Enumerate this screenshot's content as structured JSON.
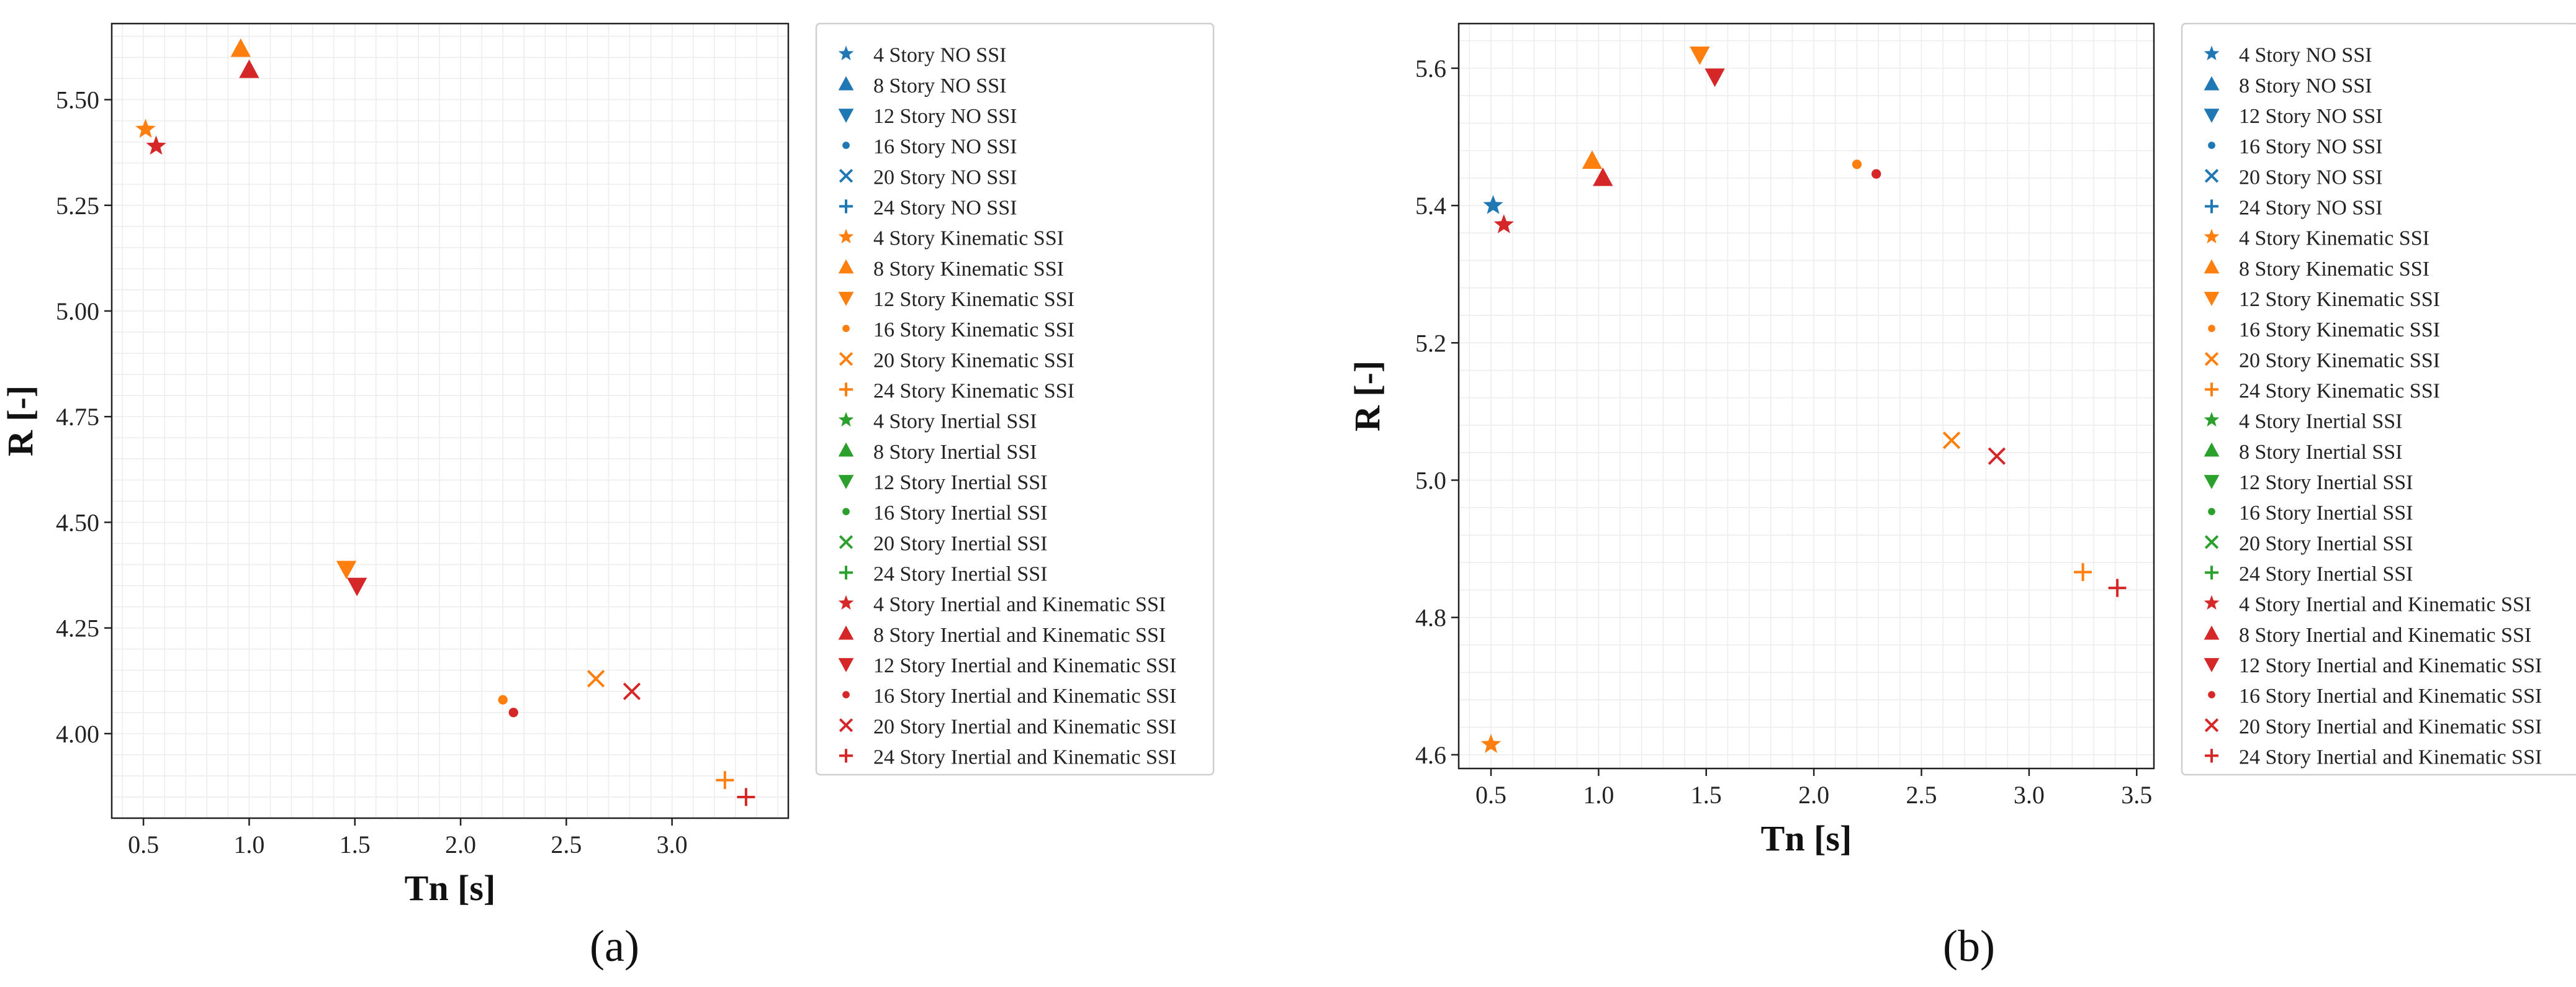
{
  "figure": {
    "panel_labels": [
      "(a)",
      "(b)"
    ]
  },
  "legend_entries": [
    {
      "label": "4 Story NO SSI",
      "marker": "star",
      "color": "#1f77b4"
    },
    {
      "label": "8 Story NO SSI",
      "marker": "triangle-up",
      "color": "#1f77b4"
    },
    {
      "label": "12 Story NO SSI",
      "marker": "triangle-down",
      "color": "#1f77b4"
    },
    {
      "label": "16 Story NO SSI",
      "marker": "dot",
      "color": "#1f77b4"
    },
    {
      "label": "20 Story NO SSI",
      "marker": "x",
      "color": "#1f77b4"
    },
    {
      "label": "24 Story NO SSI",
      "marker": "plus",
      "color": "#1f77b4"
    },
    {
      "label": "4 Story Kinematic SSI",
      "marker": "star",
      "color": "#ff7f0e"
    },
    {
      "label": "8 Story Kinematic SSI",
      "marker": "triangle-up",
      "color": "#ff7f0e"
    },
    {
      "label": "12 Story Kinematic SSI",
      "marker": "triangle-down",
      "color": "#ff7f0e"
    },
    {
      "label": "16 Story Kinematic SSI",
      "marker": "dot",
      "color": "#ff7f0e"
    },
    {
      "label": "20 Story Kinematic SSI",
      "marker": "x",
      "color": "#ff7f0e"
    },
    {
      "label": "24 Story Kinematic SSI",
      "marker": "plus",
      "color": "#ff7f0e"
    },
    {
      "label": "4 Story Inertial SSI",
      "marker": "star",
      "color": "#2ca02c"
    },
    {
      "label": "8 Story Inertial SSI",
      "marker": "triangle-up",
      "color": "#2ca02c"
    },
    {
      "label": "12 Story Inertial SSI",
      "marker": "triangle-down",
      "color": "#2ca02c"
    },
    {
      "label": "16 Story Inertial SSI",
      "marker": "dot",
      "color": "#2ca02c"
    },
    {
      "label": "20 Story Inertial SSI",
      "marker": "x",
      "color": "#2ca02c"
    },
    {
      "label": "24 Story Inertial SSI",
      "marker": "plus",
      "color": "#2ca02c"
    },
    {
      "label": "4 Story Inertial and Kinematic SSI",
      "marker": "star",
      "color": "#d62728"
    },
    {
      "label": "8 Story Inertial and Kinematic SSI",
      "marker": "triangle-up",
      "color": "#d62728"
    },
    {
      "label": "12 Story Inertial and Kinematic SSI",
      "marker": "triangle-down",
      "color": "#d62728"
    },
    {
      "label": "16 Story Inertial and Kinematic SSI",
      "marker": "dot",
      "color": "#d62728"
    },
    {
      "label": "20 Story Inertial and Kinematic SSI",
      "marker": "x",
      "color": "#d62728"
    },
    {
      "label": "24 Story Inertial and Kinematic SSI",
      "marker": "plus",
      "color": "#d62728"
    }
  ],
  "chart_data": [
    {
      "type": "scatter",
      "panel": "(a)",
      "xlabel": "Tn [s]",
      "ylabel": "R [-]",
      "xlim": [
        0.35,
        3.55
      ],
      "ylim": [
        3.8,
        5.68
      ],
      "xticks": [
        0.5,
        1.0,
        1.5,
        2.0,
        2.5,
        3.0
      ],
      "xtick_labels": [
        "0.5",
        "1.0",
        "1.5",
        "2.0",
        "2.5",
        "3.0"
      ],
      "yticks": [
        4.0,
        4.25,
        4.5,
        4.75,
        5.0,
        5.25,
        5.5
      ],
      "ytick_labels": [
        "4.00",
        "4.25",
        "4.50",
        "4.75",
        "5.00",
        "5.25",
        "5.50"
      ],
      "grid": true,
      "legend": "right-outside",
      "series": [
        {
          "name": "4 Story Kinematic SSI",
          "marker": "star",
          "color": "#ff7f0e",
          "x": 0.51,
          "y": 5.43
        },
        {
          "name": "8 Story Kinematic SSI",
          "marker": "triangle-up",
          "color": "#ff7f0e",
          "x": 0.96,
          "y": 5.62
        },
        {
          "name": "12 Story Kinematic SSI",
          "marker": "triangle-down",
          "color": "#ff7f0e",
          "x": 1.46,
          "y": 4.39
        },
        {
          "name": "16 Story Kinematic SSI",
          "marker": "dot",
          "color": "#ff7f0e",
          "x": 2.2,
          "y": 4.08
        },
        {
          "name": "20 Story Kinematic SSI",
          "marker": "x",
          "color": "#ff7f0e",
          "x": 2.64,
          "y": 4.13
        },
        {
          "name": "24 Story Kinematic SSI",
          "marker": "plus",
          "color": "#ff7f0e",
          "x": 3.25,
          "y": 3.89
        },
        {
          "name": "4 Story Inertial and Kinematic SSI",
          "marker": "star",
          "color": "#d62728",
          "x": 0.56,
          "y": 5.39
        },
        {
          "name": "8 Story Inertial and Kinematic SSI",
          "marker": "triangle-up",
          "color": "#d62728",
          "x": 1.0,
          "y": 5.57
        },
        {
          "name": "12 Story Inertial and Kinematic SSI",
          "marker": "triangle-down",
          "color": "#d62728",
          "x": 1.51,
          "y": 4.35
        },
        {
          "name": "16 Story Inertial and Kinematic SSI",
          "marker": "dot",
          "color": "#d62728",
          "x": 2.25,
          "y": 4.05
        },
        {
          "name": "20 Story Inertial and Kinematic SSI",
          "marker": "x",
          "color": "#d62728",
          "x": 2.81,
          "y": 4.1
        },
        {
          "name": "24 Story Inertial and Kinematic SSI",
          "marker": "plus",
          "color": "#d62728",
          "x": 3.35,
          "y": 3.85
        }
      ]
    },
    {
      "type": "scatter",
      "panel": "(b)",
      "xlabel": "Tn [s]",
      "ylabel": "R [-]",
      "xlim": [
        0.35,
        3.58
      ],
      "ylim": [
        4.58,
        5.665
      ],
      "xticks": [
        0.5,
        1.0,
        1.5,
        2.0,
        2.5,
        3.0,
        3.5
      ],
      "xtick_labels": [
        "0.5",
        "1.0",
        "1.5",
        "2.0",
        "2.5",
        "3.0",
        "3.5"
      ],
      "yticks": [
        4.6,
        4.8,
        5.0,
        5.2,
        5.4,
        5.6
      ],
      "ytick_labels": [
        "4.6",
        "4.8",
        "5.0",
        "5.2",
        "5.4",
        "5.6"
      ],
      "grid": true,
      "legend": "right-outside",
      "series": [
        {
          "name": "4 Story NO SSI",
          "marker": "star",
          "color": "#1f77b4",
          "x": 0.51,
          "y": 5.4
        },
        {
          "name": "4 Story Kinematic SSI",
          "marker": "star",
          "color": "#ff7f0e",
          "x": 0.5,
          "y": 4.615
        },
        {
          "name": "8 Story Kinematic SSI",
          "marker": "triangle-up",
          "color": "#ff7f0e",
          "x": 0.97,
          "y": 5.465
        },
        {
          "name": "12 Story Kinematic SSI",
          "marker": "triangle-down",
          "color": "#ff7f0e",
          "x": 1.47,
          "y": 5.62
        },
        {
          "name": "16 Story Kinematic SSI",
          "marker": "dot",
          "color": "#ff7f0e",
          "x": 2.2,
          "y": 5.46
        },
        {
          "name": "20 Story Kinematic SSI",
          "marker": "x",
          "color": "#ff7f0e",
          "x": 2.64,
          "y": 5.058
        },
        {
          "name": "24 Story Kinematic SSI",
          "marker": "plus",
          "color": "#ff7f0e",
          "x": 3.25,
          "y": 4.866
        },
        {
          "name": "4 Story Inertial and Kinematic SSI",
          "marker": "star",
          "color": "#d62728",
          "x": 0.56,
          "y": 5.372
        },
        {
          "name": "8 Story Inertial and Kinematic SSI",
          "marker": "triangle-up",
          "color": "#d62728",
          "x": 1.02,
          "y": 5.44
        },
        {
          "name": "12 Story Inertial and Kinematic SSI",
          "marker": "triangle-down",
          "color": "#d62728",
          "x": 1.54,
          "y": 5.588
        },
        {
          "name": "16 Story Inertial and Kinematic SSI",
          "marker": "dot",
          "color": "#d62728",
          "x": 2.29,
          "y": 5.446
        },
        {
          "name": "20 Story Inertial and Kinematic SSI",
          "marker": "x",
          "color": "#d62728",
          "x": 2.85,
          "y": 5.035
        },
        {
          "name": "24 Story Inertial and Kinematic SSI",
          "marker": "plus",
          "color": "#d62728",
          "x": 3.41,
          "y": 4.843
        }
      ]
    }
  ]
}
